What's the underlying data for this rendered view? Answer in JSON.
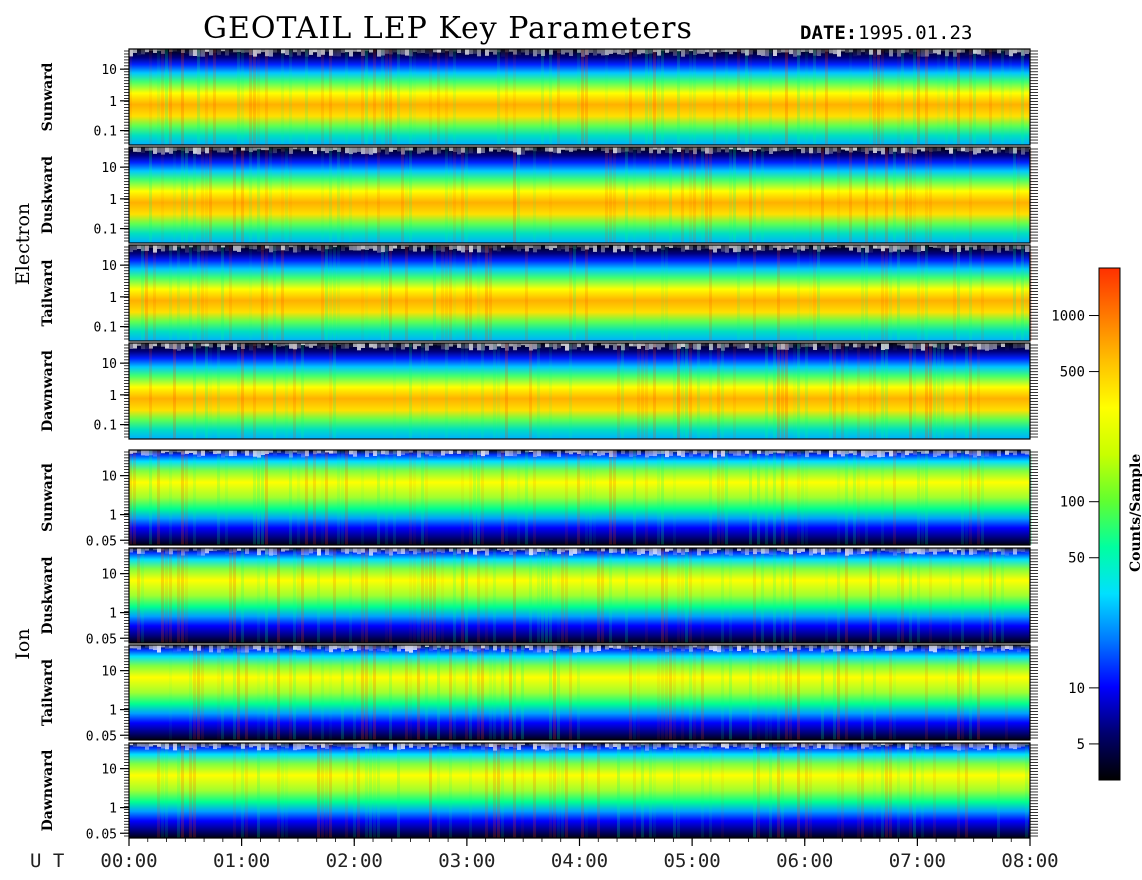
{
  "title": "GEOTAIL LEP Key Parameters",
  "date_label": "DATE:",
  "date_value": "1995.01.23",
  "x_axis_label": "U T",
  "colorbar_label": "Counts/Sample",
  "chart_data": {
    "type": "heatmap",
    "x_ticks": [
      "00:00",
      "01:00",
      "02:00",
      "03:00",
      "04:00",
      "05:00",
      "06:00",
      "07:00",
      "08:00"
    ],
    "xlim": [
      "00:00",
      "08:00"
    ],
    "groups": [
      {
        "name": "Electron",
        "y_ticks": [
          "10",
          "1",
          "0.1"
        ],
        "panels": [
          {
            "direction": "Sunward"
          },
          {
            "direction": "Duskward"
          },
          {
            "direction": "Tailward"
          },
          {
            "direction": "Dawnward"
          }
        ]
      },
      {
        "name": "Ion",
        "y_ticks": [
          "10",
          "1",
          "0.05"
        ],
        "panels": [
          {
            "direction": "Sunward"
          },
          {
            "direction": "Duskward"
          },
          {
            "direction": "Tailward"
          },
          {
            "direction": "Dawnward"
          }
        ]
      }
    ],
    "colorbar": {
      "scale": "log",
      "ticks": [
        "1000",
        "500",
        "100",
        "50",
        "10",
        "5"
      ],
      "colormap": [
        "#000000",
        "#00006e",
        "#0000ff",
        "#0078ff",
        "#00e0ff",
        "#00ffa0",
        "#60ff30",
        "#c8ff00",
        "#ffff00",
        "#ffc000",
        "#ff7800",
        "#ff3000"
      ]
    }
  }
}
